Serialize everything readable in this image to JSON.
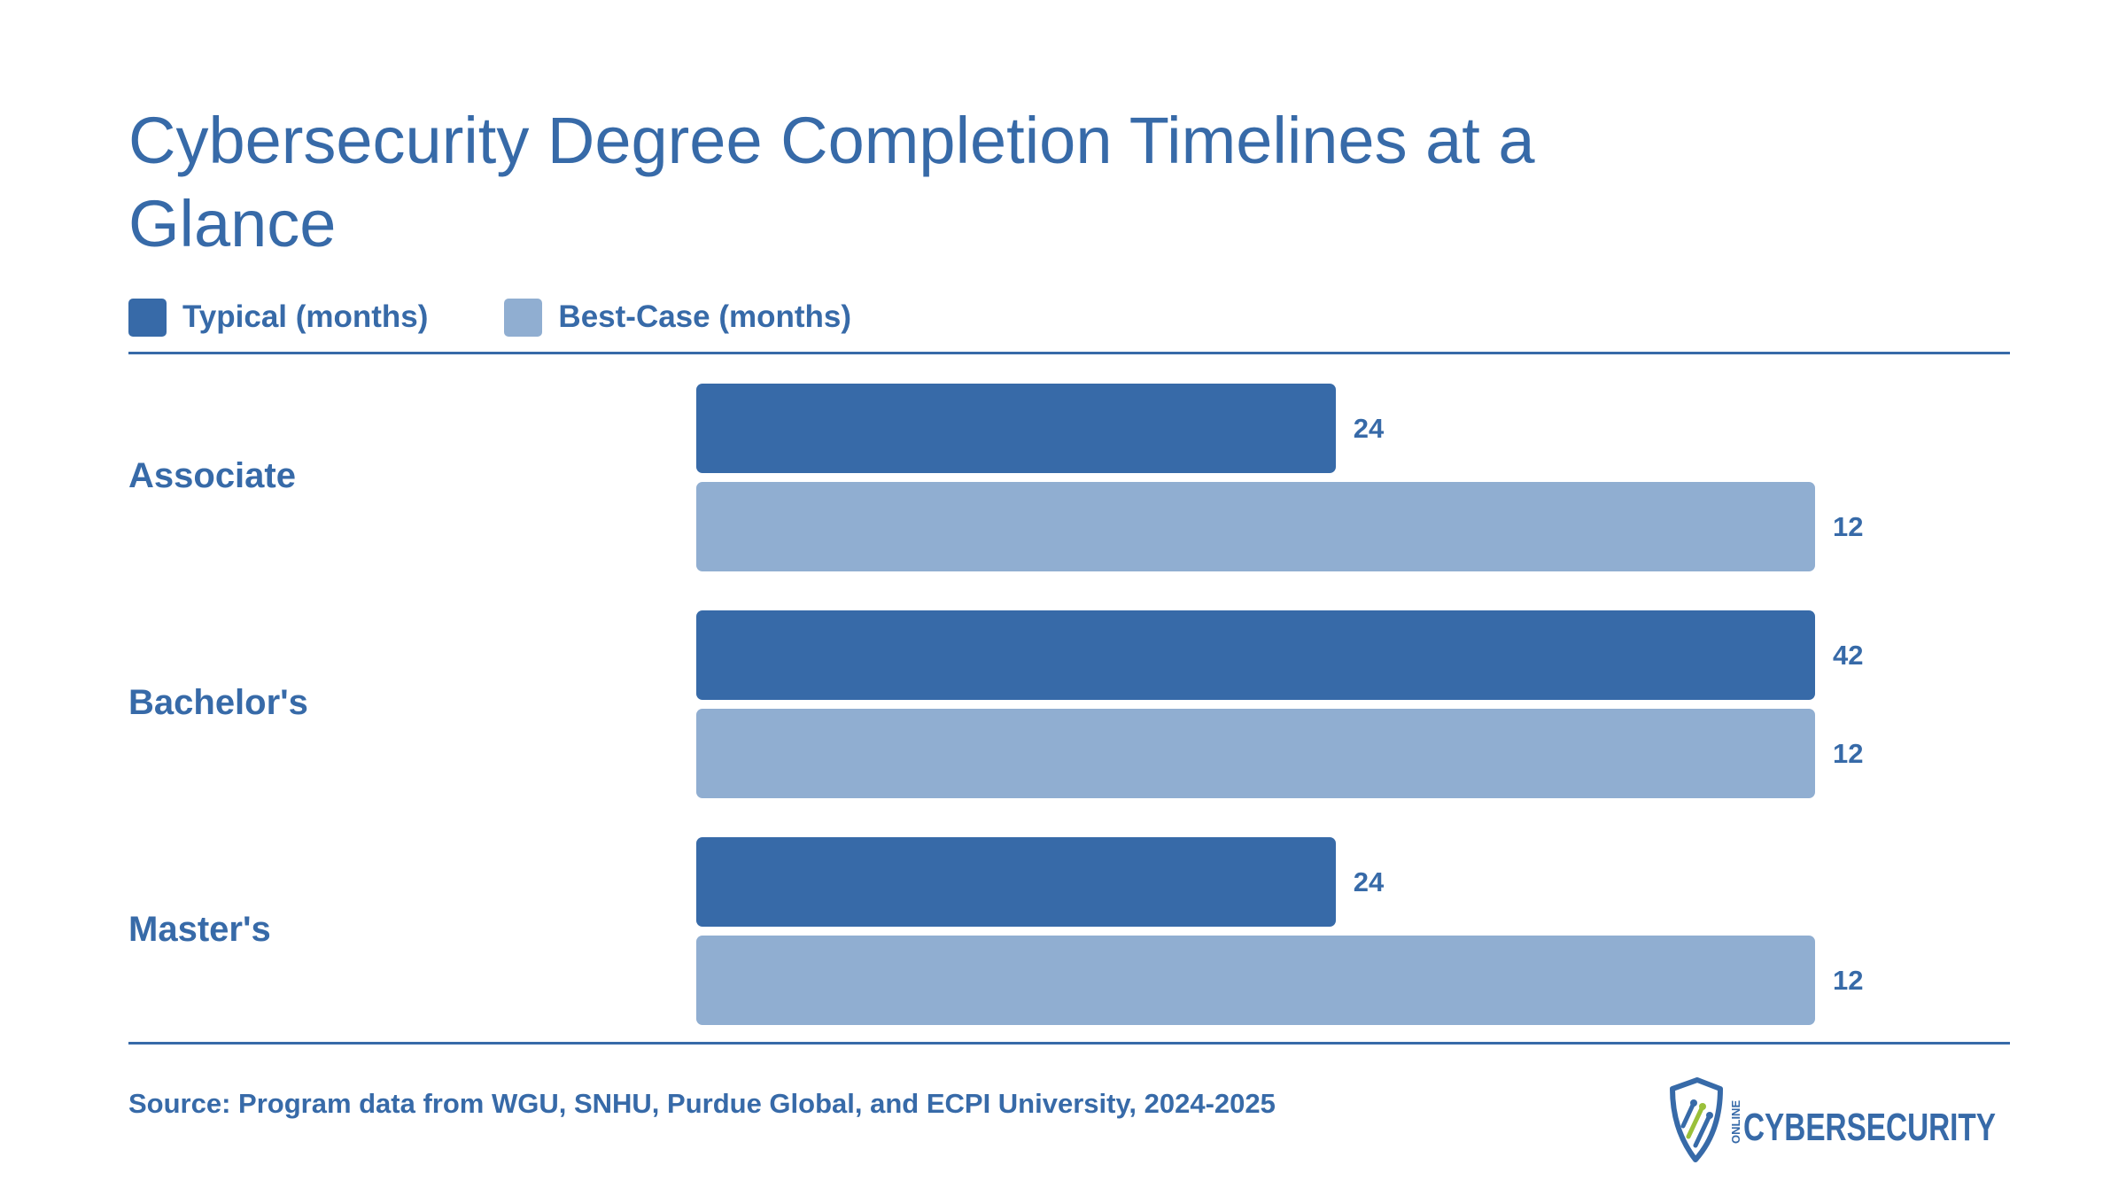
{
  "chart_data": {
    "type": "bar",
    "orientation": "horizontal",
    "title": "Cybersecurity Degree Completion Timelines at a Glance",
    "categories": [
      "Associate",
      "Bachelor's",
      "Master's"
    ],
    "series": [
      {
        "name": "Typical (months)",
        "values": [
          24,
          42,
          24
        ],
        "color": "#376aa8"
      },
      {
        "name": "Best-Case (months)",
        "values": [
          12,
          12,
          12
        ],
        "color": "#90aed1"
      }
    ],
    "legend_position": "top-left",
    "grid": false
  },
  "source": "Source: Program data from WGU, SNHU, Purdue Global, and ECPI University, 2024-2025",
  "logo": {
    "main_text": "CYBERSECURITY",
    "small_text": "ONLINE",
    "icon": "shield-circuit-icon"
  }
}
